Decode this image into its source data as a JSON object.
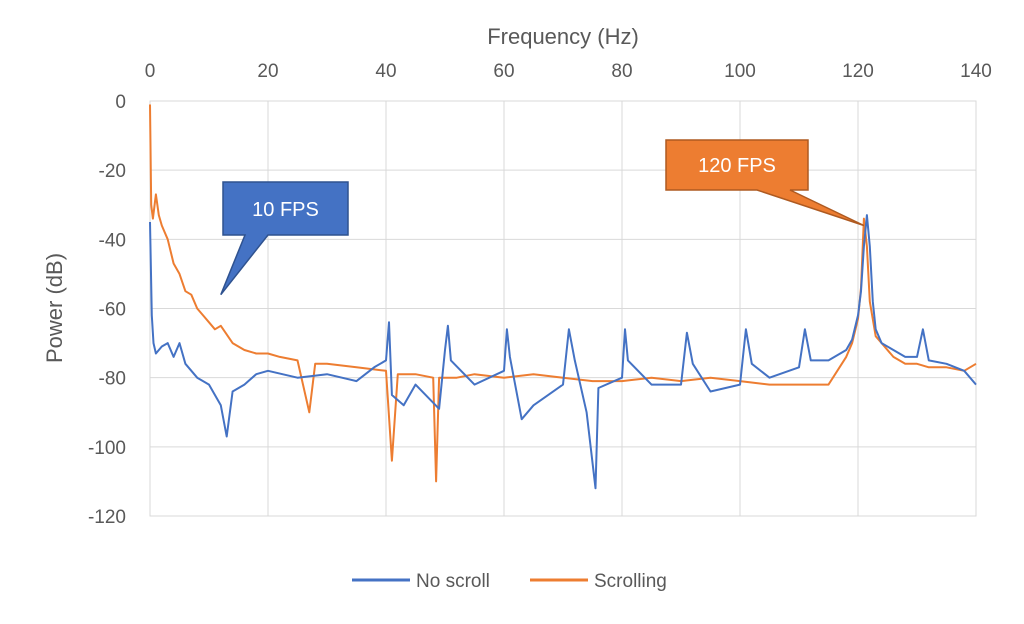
{
  "chart_data": {
    "type": "line",
    "title": "",
    "xlabel": "Frequency (Hz)",
    "ylabel": "Power (dB)",
    "xlim": [
      0,
      140
    ],
    "ylim": [
      -120,
      0
    ],
    "x_ticks": [
      0,
      20,
      40,
      60,
      80,
      100,
      120,
      140
    ],
    "y_ticks": [
      0,
      -20,
      -40,
      -60,
      -80,
      -100,
      -120
    ],
    "x_axis_position": "top",
    "grid": true,
    "legend_position": "bottom",
    "colors": {
      "no_scroll": "#4472C4",
      "scrolling": "#ED7D31",
      "grid": "#d9d9d9",
      "text": "#595959"
    },
    "series": [
      {
        "name": "No scroll",
        "color": "#4472C4",
        "points": [
          [
            0,
            -35
          ],
          [
            0.3,
            -62
          ],
          [
            0.6,
            -70
          ],
          [
            1,
            -73
          ],
          [
            2,
            -71
          ],
          [
            3,
            -70
          ],
          [
            4,
            -74
          ],
          [
            5,
            -70
          ],
          [
            6,
            -76
          ],
          [
            8,
            -80
          ],
          [
            10,
            -82
          ],
          [
            12,
            -88
          ],
          [
            13,
            -97
          ],
          [
            14,
            -84
          ],
          [
            16,
            -82
          ],
          [
            18,
            -79
          ],
          [
            20,
            -78
          ],
          [
            25,
            -80
          ],
          [
            30,
            -79
          ],
          [
            35,
            -81
          ],
          [
            38,
            -77
          ],
          [
            40,
            -75
          ],
          [
            40.5,
            -64
          ],
          [
            41,
            -85
          ],
          [
            43,
            -88
          ],
          [
            45,
            -82
          ],
          [
            49,
            -89
          ],
          [
            50,
            -72
          ],
          [
            50.5,
            -65
          ],
          [
            51,
            -75
          ],
          [
            55,
            -82
          ],
          [
            60,
            -78
          ],
          [
            60.5,
            -66
          ],
          [
            61,
            -74
          ],
          [
            63,
            -92
          ],
          [
            65,
            -88
          ],
          [
            70,
            -82
          ],
          [
            71,
            -66
          ],
          [
            72,
            -75
          ],
          [
            74,
            -90
          ],
          [
            75.5,
            -112
          ],
          [
            76,
            -83
          ],
          [
            80,
            -80
          ],
          [
            80.5,
            -66
          ],
          [
            81,
            -75
          ],
          [
            85,
            -82
          ],
          [
            90,
            -82
          ],
          [
            91,
            -67
          ],
          [
            92,
            -76
          ],
          [
            95,
            -84
          ],
          [
            100,
            -82
          ],
          [
            101,
            -66
          ],
          [
            102,
            -76
          ],
          [
            105,
            -80
          ],
          [
            110,
            -77
          ],
          [
            111,
            -66
          ],
          [
            112,
            -75
          ],
          [
            115,
            -75
          ],
          [
            118,
            -72
          ],
          [
            119,
            -69
          ],
          [
            120,
            -62
          ],
          [
            120.5,
            -55
          ],
          [
            121,
            -42
          ],
          [
            121.5,
            -33
          ],
          [
            122,
            -42
          ],
          [
            122.5,
            -58
          ],
          [
            123,
            -66
          ],
          [
            124,
            -70
          ],
          [
            126,
            -72
          ],
          [
            128,
            -74
          ],
          [
            130,
            -74
          ],
          [
            131,
            -66
          ],
          [
            132,
            -75
          ],
          [
            135,
            -76
          ],
          [
            138,
            -78
          ],
          [
            140,
            -82
          ]
        ]
      },
      {
        "name": "Scrolling",
        "color": "#ED7D31",
        "points": [
          [
            0,
            -1
          ],
          [
            0.2,
            -30
          ],
          [
            0.5,
            -34
          ],
          [
            1,
            -27
          ],
          [
            1.5,
            -33
          ],
          [
            2,
            -36
          ],
          [
            3,
            -40
          ],
          [
            4,
            -47
          ],
          [
            5,
            -50
          ],
          [
            6,
            -55
          ],
          [
            7,
            -56
          ],
          [
            8,
            -60
          ],
          [
            9,
            -62
          ],
          [
            10,
            -64
          ],
          [
            11,
            -66
          ],
          [
            12,
            -65
          ],
          [
            14,
            -70
          ],
          [
            16,
            -72
          ],
          [
            18,
            -73
          ],
          [
            20,
            -73
          ],
          [
            22,
            -74
          ],
          [
            25,
            -75
          ],
          [
            27,
            -90
          ],
          [
            28,
            -76
          ],
          [
            30,
            -76
          ],
          [
            35,
            -77
          ],
          [
            40,
            -78
          ],
          [
            41,
            -104
          ],
          [
            42,
            -79
          ],
          [
            45,
            -79
          ],
          [
            48,
            -80
          ],
          [
            48.5,
            -110
          ],
          [
            49,
            -80
          ],
          [
            52,
            -80
          ],
          [
            55,
            -79
          ],
          [
            60,
            -80
          ],
          [
            65,
            -79
          ],
          [
            70,
            -80
          ],
          [
            75,
            -81
          ],
          [
            80,
            -81
          ],
          [
            85,
            -80
          ],
          [
            90,
            -81
          ],
          [
            95,
            -80
          ],
          [
            100,
            -81
          ],
          [
            105,
            -82
          ],
          [
            110,
            -82
          ],
          [
            115,
            -82
          ],
          [
            118,
            -74
          ],
          [
            119,
            -70
          ],
          [
            120,
            -63
          ],
          [
            120.5,
            -54
          ],
          [
            121,
            -34
          ],
          [
            121.5,
            -42
          ],
          [
            122,
            -58
          ],
          [
            123,
            -68
          ],
          [
            124,
            -70
          ],
          [
            126,
            -74
          ],
          [
            128,
            -76
          ],
          [
            130,
            -76
          ],
          [
            132,
            -77
          ],
          [
            135,
            -77
          ],
          [
            138,
            -78
          ],
          [
            140,
            -76
          ]
        ]
      }
    ],
    "annotations": [
      {
        "text": "10 FPS",
        "color": "#4472C4",
        "target_x": 12,
        "target_y": -56
      },
      {
        "text": "120 FPS",
        "color": "#ED7D31",
        "target_x": 121,
        "target_y": -36
      }
    ]
  }
}
